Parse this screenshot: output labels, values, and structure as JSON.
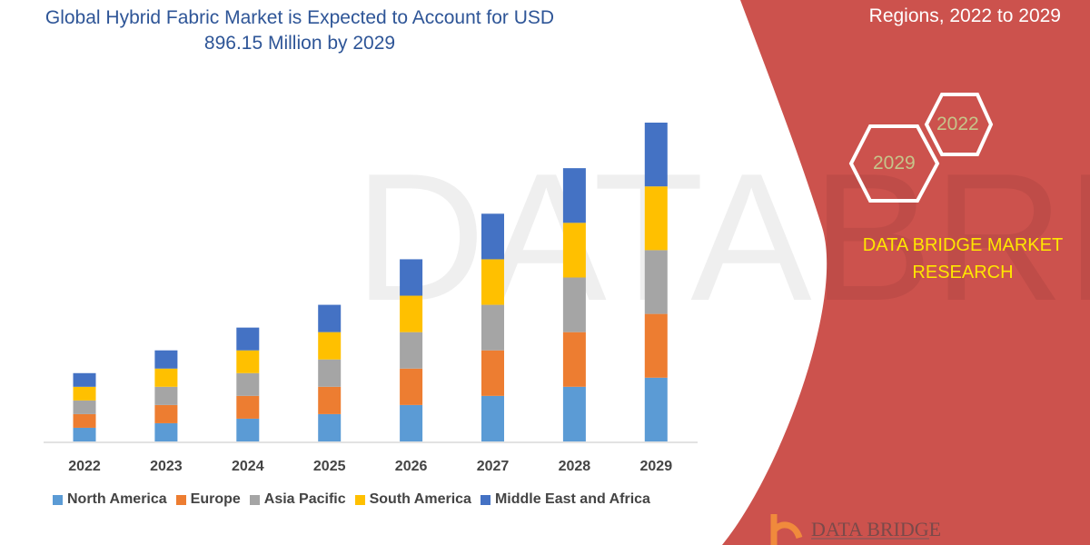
{
  "header": {
    "title_line1": "Global Hybrid Fabric Market is Expected to Account for USD",
    "title_line2": "896.15 Million by 2029",
    "right_title": "Regions, 2022 to 2029"
  },
  "panel": {
    "hex_start": "2022",
    "hex_end": "2029",
    "brand_line1": "DATA BRIDGE MARKET",
    "brand_line2": "RESEARCH",
    "logo_text": "DATA BRIDGE",
    "panel_color": "#cc524d",
    "brand_color": "#ffe600"
  },
  "chart_data": {
    "type": "bar",
    "stacked": true,
    "categories": [
      "2022",
      "2023",
      "2024",
      "2025",
      "2026",
      "2027",
      "2028",
      "2029"
    ],
    "series": [
      {
        "name": "North America",
        "color": "#5b9bd5",
        "values": [
          15,
          20,
          25,
          30,
          40,
          50,
          60,
          70
        ]
      },
      {
        "name": "Europe",
        "color": "#ed7d31",
        "values": [
          15,
          20,
          25,
          30,
          40,
          50,
          60,
          70
        ]
      },
      {
        "name": "Asia Pacific",
        "color": "#a5a5a5",
        "values": [
          15,
          20,
          25,
          30,
          40,
          50,
          60,
          70
        ]
      },
      {
        "name": "South America",
        "color": "#ffc000",
        "values": [
          15,
          20,
          25,
          30,
          40,
          50,
          60,
          70
        ]
      },
      {
        "name": "Middle East and Africa",
        "color": "#4472c4",
        "values": [
          15,
          20,
          25,
          30,
          40,
          50,
          60,
          70
        ]
      }
    ],
    "ylim": [
      0,
      350
    ],
    "y_axis_shown": false,
    "grid": false,
    "legend_position": "bottom"
  }
}
